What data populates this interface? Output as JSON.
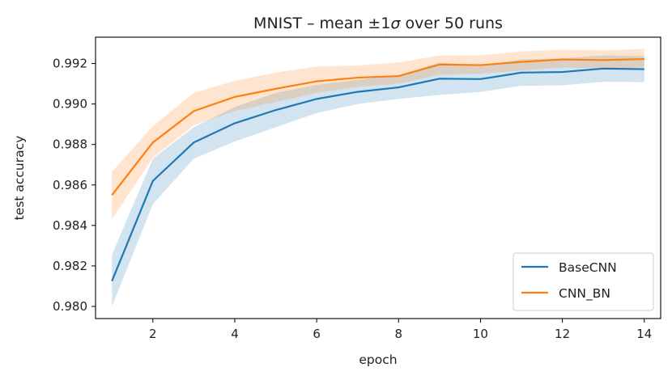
{
  "chart_data": {
    "type": "line",
    "title_prefix": "MNIST – mean ±1",
    "title_sigma": "σ",
    "title_suffix": " over 50 runs",
    "xlabel": "epoch",
    "ylabel": "test accuracy",
    "xlim": [
      0.6,
      14.4
    ],
    "ylim": [
      0.9794,
      0.9933
    ],
    "xticks": [
      2,
      4,
      6,
      8,
      10,
      12,
      14
    ],
    "yticks": [
      0.98,
      0.982,
      0.984,
      0.986,
      0.988,
      0.99,
      0.992
    ],
    "ytick_labels": [
      "0.980",
      "0.982",
      "0.984",
      "0.986",
      "0.988",
      "0.990",
      "0.992"
    ],
    "grid": false,
    "legend_position": "bottom-right",
    "x": [
      1,
      2,
      3,
      4,
      5,
      6,
      7,
      8,
      9,
      10,
      11,
      12,
      13,
      14
    ],
    "series": [
      {
        "name": "BaseCNN",
        "color": "#1f77b4",
        "values": [
          0.98125,
          0.9862,
          0.9881,
          0.98905,
          0.9897,
          0.99025,
          0.9906,
          0.99082,
          0.99125,
          0.99123,
          0.99155,
          0.99158,
          0.99175,
          0.99172
        ],
        "band_lower": [
          0.98,
          0.98505,
          0.9873,
          0.98815,
          0.98885,
          0.98955,
          0.99,
          0.99025,
          0.99045,
          0.9906,
          0.9909,
          0.99092,
          0.9911,
          0.99108
        ],
        "band_upper": [
          0.98255,
          0.9873,
          0.98885,
          0.98985,
          0.99055,
          0.99095,
          0.9912,
          0.9914,
          0.99205,
          0.9919,
          0.9922,
          0.99225,
          0.9924,
          0.99236
        ]
      },
      {
        "name": "CNN_BN",
        "color": "#ff7f0e",
        "values": [
          0.9855,
          0.9881,
          0.98965,
          0.99035,
          0.99075,
          0.99112,
          0.9913,
          0.99138,
          0.99195,
          0.99192,
          0.99208,
          0.9922,
          0.99217,
          0.99222
        ],
        "band_lower": [
          0.9843,
          0.98735,
          0.98895,
          0.98965,
          0.9901,
          0.99055,
          0.99085,
          0.991,
          0.99145,
          0.9915,
          0.99165,
          0.9918,
          0.99175,
          0.9918
        ],
        "band_upper": [
          0.98665,
          0.9889,
          0.99055,
          0.99115,
          0.99155,
          0.99185,
          0.9919,
          0.99205,
          0.9924,
          0.9924,
          0.9926,
          0.99268,
          0.99265,
          0.99272
        ]
      }
    ]
  }
}
